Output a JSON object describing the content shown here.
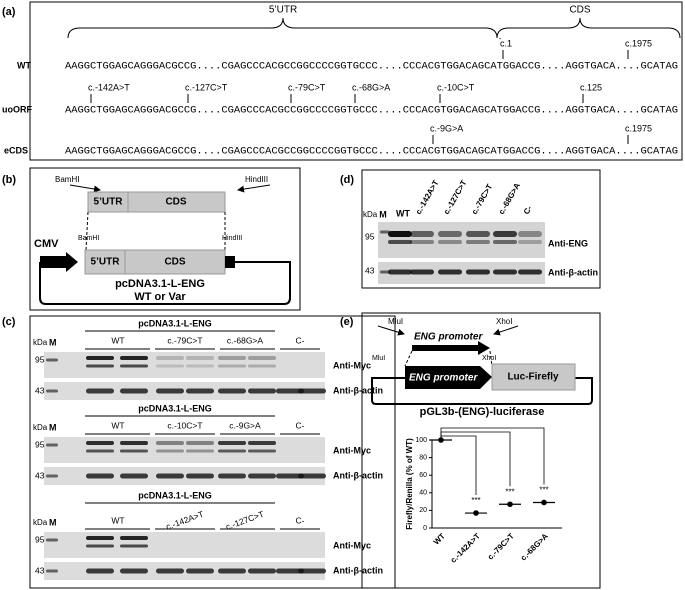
{
  "panel_a": {
    "label": "(a)",
    "regions": [
      "5’UTR",
      "CDS"
    ],
    "rows": [
      {
        "name": "WT",
        "sequence": "AAGGCTGGAGCAGGGACGCCG....CGAGCCCACGCCGGCCCCGGTGCCC....CCCACGTGGACAGCATGGACCG....AGGTGACA....GCATAG",
        "annotations": [
          "c.1",
          "c.1975"
        ]
      },
      {
        "name": "uoORF",
        "sequence": "AAGGCTGGAGCAGGGACGCCG....CGAGCCCACGCCGGCCCCGGTGCCC....CCCACGTGGACAGCATGGACCG....AGGTGACA....GCATAG",
        "annotations": [
          "c.-142A>T",
          "c.-127C>T",
          "c.-79C>T",
          "c.-68G>A",
          "c.-10C>T",
          "c.125"
        ]
      },
      {
        "name": "eCDS",
        "sequence": "AAGGCTGGAGCAGGGACGCCG....CGAGCCCACGCCGGCCCCGGTGCCC....CCCACGTGGACAGCATGGACCG....AGGTGACA....GCATAG",
        "annotations": [
          "c.-9G>A",
          "c.1975"
        ]
      }
    ]
  },
  "panel_b": {
    "label": "(b)",
    "primer_sites": [
      "BamHI",
      "HindIII"
    ],
    "insert": [
      "5’UTR",
      "CDS"
    ],
    "vector_sites": [
      "BamHI",
      "HindIII"
    ],
    "vector_insert": [
      "5’UTR",
      "CDS"
    ],
    "promoter": "CMV",
    "plasmid": [
      "pcDNA3.1-L-ENG",
      "WT or Var"
    ]
  },
  "panel_c": {
    "label": "(c)",
    "blots": [
      {
        "title": "pcDNA3.1-L-ENG",
        "kda": "kDa",
        "marker": "M",
        "lanes": [
          "WT",
          "c.-79C>T",
          "c.-68G>A",
          "C-"
        ],
        "sizes": [
          95,
          43
        ],
        "antibodies": [
          "Anti-Myc",
          "Anti-β-actin"
        ]
      },
      {
        "title": "pcDNA3.1-L-ENG",
        "kda": "kDa",
        "marker": "M",
        "lanes": [
          "WT",
          "c.-10C>T",
          "c.-9G>A",
          "C-"
        ],
        "sizes": [
          95,
          43
        ],
        "antibodies": [
          "Anti-Myc",
          "Anti-β-actin"
        ]
      },
      {
        "title": "pcDNA3.1-L-ENG",
        "kda": "kDa",
        "marker": "M",
        "lanes": [
          "WT",
          "c.-142A>T",
          "c.-127C>T",
          "C-"
        ],
        "sizes": [
          95,
          43
        ],
        "antibodies": [
          "Anti-Myc",
          "Anti-β-actin"
        ]
      }
    ]
  },
  "panel_d": {
    "label": "(d)",
    "kda": "kDa",
    "marker": "M",
    "lanes": [
      "WT",
      "c.-142A>T",
      "c.-127C>T",
      "c.-79C>T",
      "c.-68G>A",
      "C-"
    ],
    "sizes": [
      95,
      43
    ],
    "antibodies": [
      "Anti-ENG",
      "Anti-β-actin"
    ]
  },
  "panel_e": {
    "label": "(e)",
    "primer_sites": [
      "MluI",
      "XhoI"
    ],
    "vector_sites": [
      "MluI",
      "XhoI"
    ],
    "promoter": "ENG promoter",
    "reporter": "Luc-Firefly",
    "plasmid": "pGL3b-(ENG)-luciferase",
    "chart": {
      "type": "scatter",
      "y_label": "Firefly/Renilla (% of WT)",
      "categories": [
        "WT",
        "c.-142A>T",
        "c.-79C>T",
        "c.-68G>A"
      ],
      "values": [
        100,
        17,
        27,
        29
      ],
      "significance": "***",
      "ylim": [
        0,
        100
      ],
      "yticks": [
        0,
        20,
        40,
        60,
        80,
        100
      ]
    }
  }
}
